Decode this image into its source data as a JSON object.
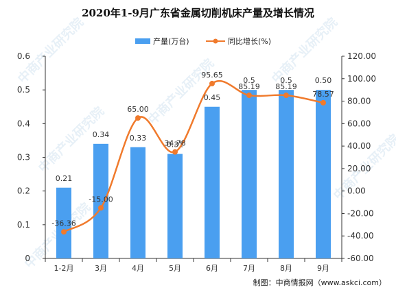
{
  "title": "2020年1-9月广东省金属切削机床产量及增长情况",
  "credit": "制图：中商情报网（www.askci.com）",
  "watermark": "中商产业研究院",
  "colors": {
    "bar": "#4a9ff0",
    "line": "#f07a2c",
    "axis": "#333333",
    "text": "#333333"
  },
  "chart_data": {
    "type": "bar",
    "categories": [
      "1-2月",
      "3月",
      "4月",
      "5月",
      "6月",
      "7月",
      "8月",
      "9月"
    ],
    "series": [
      {
        "name": "产量(万台)",
        "type": "bar",
        "axis": "left",
        "values": [
          0.21,
          0.34,
          0.33,
          0.31,
          0.45,
          0.5,
          0.5,
          0.5
        ],
        "labels": [
          "0.21",
          "0.34",
          "0.33",
          "0.31",
          "0.45",
          "0.5",
          "0.5",
          "0.50"
        ]
      },
      {
        "name": "同比增长(%)",
        "type": "line",
        "axis": "right",
        "values": [
          -36.36,
          -15.0,
          65.0,
          34.78,
          95.65,
          85.19,
          85.19,
          78.57
        ],
        "labels": [
          "-36.36",
          "-15.00",
          "65.00",
          "34.78",
          "95.65",
          "85.19",
          "85.19",
          "78.57"
        ]
      }
    ],
    "ylim_left": [
      0,
      0.6
    ],
    "yticks_left": [
      "0",
      "0.1",
      "0.2",
      "0.3",
      "0.4",
      "0.5",
      "0.6"
    ],
    "ylim_right": [
      -60,
      120
    ],
    "yticks_right": [
      "-60.00",
      "-40.00",
      "-20.00",
      "0.00",
      "20.00",
      "40.00",
      "60.00",
      "80.00",
      "100.00",
      "120.00"
    ],
    "legend_position": "top-center",
    "grid": false
  }
}
